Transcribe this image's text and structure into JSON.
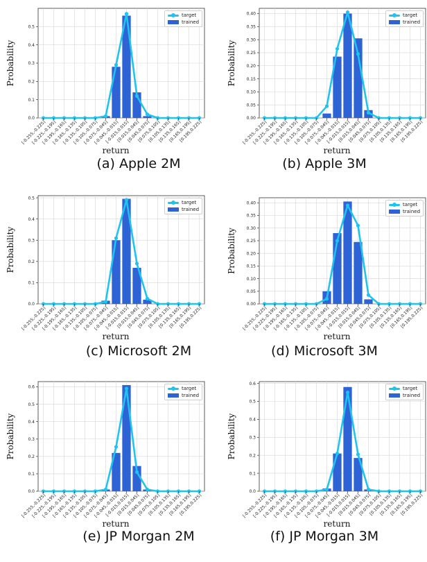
{
  "colors": {
    "target": "#1fc4ee",
    "trained": "#2e63d6",
    "grid": "#d6d6d6",
    "axis": "#333333"
  },
  "icons": {
    "target_marker": "circle-marker",
    "trained_marker": "bar-swatch"
  },
  "chart_data": [
    {
      "id": "a",
      "caption": "(a) Apple 2M",
      "type": "bar",
      "ylabel": "Probability",
      "xlabel": "return",
      "legend": [
        "target",
        "trained"
      ],
      "legend_position": "top-right",
      "grid": true,
      "categories": [
        "[-0.255,-0.225]",
        "[-0.225,-0.195]",
        "[-0.195,-0.165]",
        "[-0.165,-0.135]",
        "[-0.135,-0.105]",
        "[-0.105,-0.075]",
        "[-0.075,-0.045]",
        "[-0.045,-0.015]",
        "[-0.015,0.015]",
        "[0.015,0.045]",
        "[0.045,0.075]",
        "[0.075,0.105]",
        "[0.105,0.135]",
        "[0.135,0.165]",
        "[0.165,0.195]",
        "[0.195,0.225]"
      ],
      "yticks": [
        "0.0",
        "0.1",
        "0.2",
        "0.3",
        "0.4",
        "0.5"
      ],
      "ylim": [
        0,
        0.6
      ],
      "series": [
        {
          "name": "target",
          "kind": "line",
          "values": [
            0,
            0,
            0,
            0,
            0,
            0,
            0.01,
            0.29,
            0.57,
            0.12,
            0.02,
            0,
            0,
            0,
            0,
            0
          ]
        },
        {
          "name": "trained",
          "kind": "bar",
          "values": [
            0,
            0,
            0,
            0,
            0,
            0,
            0.01,
            0.28,
            0.56,
            0.14,
            0.01,
            0,
            0,
            0,
            0,
            0
          ]
        }
      ]
    },
    {
      "id": "b",
      "caption": "(b) Apple 3M",
      "type": "bar",
      "ylabel": "Probability",
      "xlabel": "return",
      "legend": [
        "target",
        "trained"
      ],
      "legend_position": "top-right",
      "grid": true,
      "categories": [
        "[-0.255,-0.225]",
        "[-0.225,-0.195]",
        "[-0.195,-0.165]",
        "[-0.165,-0.135]",
        "[-0.135,-0.105]",
        "[-0.105,-0.075]",
        "[-0.075,-0.045]",
        "[-0.045,-0.015]",
        "[-0.015,0.015]",
        "[0.015,0.045]",
        "[0.045,0.075]",
        "[0.075,0.105]",
        "[0.105,0.135]",
        "[0.135,0.165]",
        "[0.165,0.195]",
        "[0.195,0.225]"
      ],
      "yticks": [
        "0.00",
        "0.05",
        "0.10",
        "0.15",
        "0.20",
        "0.25",
        "0.30",
        "0.35",
        "0.40"
      ],
      "ylim": [
        0,
        0.42
      ],
      "series": [
        {
          "name": "target",
          "kind": "line",
          "values": [
            0,
            0,
            0,
            0,
            0,
            0,
            0.045,
            0.265,
            0.405,
            0.245,
            0.02,
            0,
            0,
            0,
            0,
            0
          ]
        },
        {
          "name": "trained",
          "kind": "bar",
          "values": [
            0,
            0,
            0,
            0,
            0,
            0,
            0.017,
            0.235,
            0.4,
            0.305,
            0.03,
            0,
            0,
            0,
            0,
            0
          ]
        }
      ]
    },
    {
      "id": "c",
      "caption": "(c) Microsoft 2M",
      "type": "bar",
      "ylabel": "Probability",
      "xlabel": "return",
      "legend": [
        "target",
        "trained"
      ],
      "legend_position": "top-right",
      "grid": true,
      "categories": [
        "[-0.255,-0.225]",
        "[-0.225,-0.195]",
        "[-0.195,-0.165]",
        "[-0.165,-0.135]",
        "[-0.135,-0.105]",
        "[-0.105,-0.075]",
        "[-0.075,-0.045]",
        "[-0.045,-0.015]",
        "[-0.015,0.015]",
        "[0.015,0.045]",
        "[0.045,0.075]",
        "[0.075,0.105]",
        "[0.105,0.135]",
        "[0.135,0.165]",
        "[0.165,0.195]",
        "[0.195,0.225]"
      ],
      "yticks": [
        "0.0",
        "0.1",
        "0.2",
        "0.3",
        "0.4",
        "0.5"
      ],
      "ylim": [
        0,
        0.51
      ],
      "series": [
        {
          "name": "target",
          "kind": "line",
          "values": [
            0,
            0,
            0,
            0,
            0,
            0,
            0.01,
            0.31,
            0.49,
            0.19,
            0.025,
            0,
            0,
            0,
            0,
            0
          ]
        },
        {
          "name": "trained",
          "kind": "bar",
          "values": [
            0,
            0,
            0,
            0,
            0,
            0,
            0.015,
            0.3,
            0.495,
            0.17,
            0.02,
            0,
            0,
            0,
            0,
            0
          ]
        }
      ]
    },
    {
      "id": "d",
      "caption": "(d) Microsoft 3M",
      "type": "bar",
      "ylabel": "Probability",
      "xlabel": "return",
      "legend": [
        "target",
        "trained"
      ],
      "legend_position": "top-right",
      "grid": true,
      "categories": [
        "[-0.255,-0.225]",
        "[-0.225,-0.195]",
        "[-0.195,-0.165]",
        "[-0.165,-0.135]",
        "[-0.135,-0.105]",
        "[-0.105,-0.075]",
        "[-0.075,-0.045]",
        "[-0.045,-0.015]",
        "[-0.015,0.015]",
        "[0.015,0.045]",
        "[0.045,0.075]",
        "[0.075,0.105]",
        "[0.105,0.135]",
        "[0.135,0.165]",
        "[0.165,0.195]",
        "[0.195,0.225]"
      ],
      "yticks": [
        "0.00",
        "0.05",
        "0.10",
        "0.15",
        "0.20",
        "0.25",
        "0.30",
        "0.35",
        "0.40"
      ],
      "ylim": [
        0,
        0.42
      ],
      "series": [
        {
          "name": "target",
          "kind": "line",
          "values": [
            0,
            0,
            0,
            0,
            0,
            0,
            0.02,
            0.25,
            0.39,
            0.31,
            0.035,
            0,
            0,
            0,
            0,
            0
          ]
        },
        {
          "name": "trained",
          "kind": "bar",
          "values": [
            0,
            0,
            0,
            0,
            0,
            0,
            0.05,
            0.28,
            0.405,
            0.245,
            0.018,
            0,
            0,
            0,
            0,
            0
          ]
        }
      ]
    },
    {
      "id": "e",
      "caption": "(e) JP Morgan 2M",
      "type": "bar",
      "ylabel": "Probability",
      "xlabel": "return",
      "legend": [
        "target",
        "trained"
      ],
      "legend_position": "top-right",
      "grid": true,
      "categories": [
        "[-0.255,-0.225]",
        "[-0.225,-0.195]",
        "[-0.195,-0.165]",
        "[-0.165,-0.135]",
        "[-0.135,-0.105]",
        "[-0.105,-0.075]",
        "[-0.075,-0.045]",
        "[-0.045,-0.015]",
        "[-0.015,0.015]",
        "[0.015,0.045]",
        "[0.045,0.075]",
        "[0.075,0.105]",
        "[0.105,0.135]",
        "[0.135,0.165]",
        "[0.165,0.195]",
        "[0.195,0.225]"
      ],
      "yticks": [
        "0.0",
        "0.1",
        "0.2",
        "0.3",
        "0.4",
        "0.5",
        "0.6"
      ],
      "ylim": [
        0,
        0.63
      ],
      "series": [
        {
          "name": "target",
          "kind": "line",
          "values": [
            0,
            0,
            0,
            0,
            0,
            0,
            0.01,
            0.255,
            0.59,
            0.11,
            0.01,
            0,
            0,
            0,
            0,
            0
          ]
        },
        {
          "name": "trained",
          "kind": "bar",
          "values": [
            0,
            0,
            0,
            0,
            0,
            0,
            0.01,
            0.22,
            0.61,
            0.145,
            0.01,
            0,
            0,
            0,
            0,
            0
          ]
        }
      ]
    },
    {
      "id": "f",
      "caption": "(f) JP Morgan 3M",
      "type": "bar",
      "ylabel": "Probability",
      "xlabel": "return",
      "legend": [
        "target",
        "trained"
      ],
      "legend_position": "top-right",
      "grid": true,
      "categories": [
        "[-0.255,-0.225]",
        "[-0.225,-0.195]",
        "[-0.195,-0.165]",
        "[-0.165,-0.135]",
        "[-0.135,-0.105]",
        "[-0.105,-0.075]",
        "[-0.075,-0.045]",
        "[-0.045,-0.015]",
        "[-0.015,0.015]",
        "[0.015,0.045]",
        "[0.045,0.075]",
        "[0.075,0.105]",
        "[0.105,0.135]",
        "[0.135,0.165]",
        "[0.165,0.195]",
        "[0.195,0.225]"
      ],
      "yticks": [
        "0.0",
        "0.1",
        "0.2",
        "0.3",
        "0.4",
        "0.5",
        "0.6"
      ],
      "ylim": [
        0,
        0.61
      ],
      "series": [
        {
          "name": "target",
          "kind": "line",
          "values": [
            0,
            0,
            0,
            0,
            0,
            0,
            0.01,
            0.21,
            0.55,
            0.205,
            0.01,
            0,
            0,
            0,
            0,
            0
          ]
        },
        {
          "name": "trained",
          "kind": "bar",
          "values": [
            0,
            0,
            0,
            0,
            0,
            0,
            0.015,
            0.21,
            0.58,
            0.185,
            0.01,
            0,
            0,
            0,
            0,
            0
          ]
        }
      ]
    }
  ]
}
